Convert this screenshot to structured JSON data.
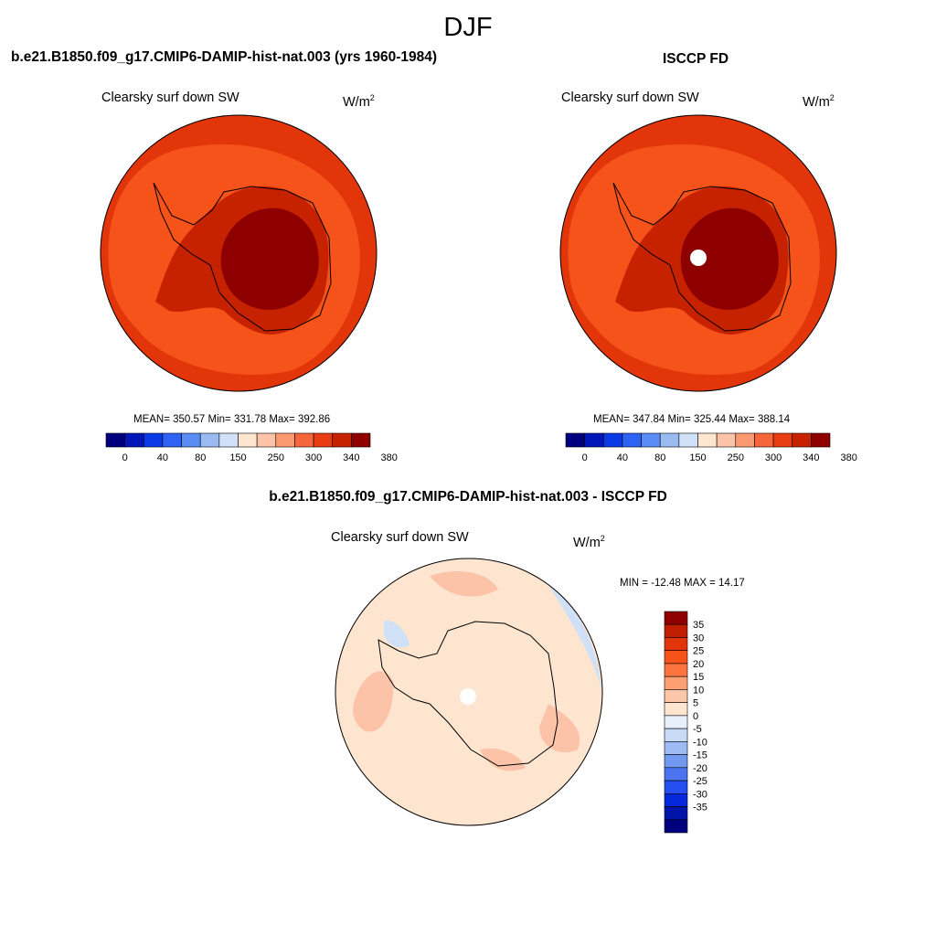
{
  "season_title": "DJF",
  "panels": [
    {
      "title": "b.e21.B1850.f09_g17.CMIP6-DAMIP-hist-nat.003 (yrs 1960-1984)",
      "variable": "Clearsky surf down SW",
      "units": "W/m",
      "units_sup": "2",
      "stats": "MEAN= 350.57  Min= 331.78  Max= 392.86",
      "colorbar_labels": [
        "0",
        "40",
        "80",
        "150",
        "250",
        "300",
        "340",
        "380"
      ]
    },
    {
      "title": "ISCCP FD",
      "variable": "Clearsky surf down SW",
      "units": "W/m",
      "units_sup": "2",
      "stats": "MEAN= 347.84  Min= 325.44  Max= 388.14",
      "colorbar_labels": [
        "0",
        "40",
        "80",
        "150",
        "250",
        "300",
        "340",
        "380"
      ]
    },
    {
      "title": "b.e21.B1850.f09_g17.CMIP6-DAMIP-hist-nat.003 - ISCCP FD",
      "variable": "Clearsky surf down SW",
      "units": "W/m",
      "units_sup": "2",
      "stats": "MIN = -12.48 MAX =  14.17",
      "colorbar_labels": [
        "35",
        "30",
        "25",
        "20",
        "15",
        "10",
        "5",
        "0",
        "-5",
        "-10",
        "-15",
        "-20",
        "-25",
        "-30",
        "-35"
      ]
    }
  ],
  "colors": {
    "abs_colorbar": [
      "#00007f",
      "#0016b9",
      "#0a3ae6",
      "#2e62f5",
      "#5a8cf5",
      "#9abaf2",
      "#cfe0f7",
      "#fde5d0",
      "#fcc3a8",
      "#fb9a70",
      "#f6663b",
      "#ea3c12",
      "#c72200",
      "#8e0000"
    ],
    "diff_colorbar": [
      "#8e0000",
      "#c01e00",
      "#e3350a",
      "#f6531b",
      "#fb743f",
      "#fca074",
      "#fcc7a9",
      "#fde5d0",
      "#e7f0fb",
      "#c7dbf7",
      "#9ebcf3",
      "#7298f0",
      "#4c74f0",
      "#254ff0",
      "#0628dc",
      "#0014aa",
      "#00007f"
    ],
    "ocean_outer": "#e3350a",
    "ocean_inner": "#f6531b",
    "ice_mid": "#c72200",
    "ice_core": "#8e0000",
    "diff_base": "#fde5d0",
    "diff_pos": "#fcc3a8",
    "diff_neg": "#cfe0f7"
  }
}
